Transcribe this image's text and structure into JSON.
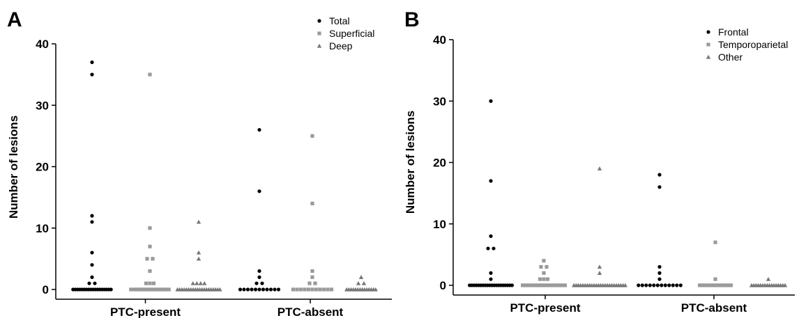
{
  "colors": {
    "total": "#000000",
    "superficial": "#9a9a9a",
    "deep": "#777777",
    "frontal": "#000000",
    "temporoparietal": "#9a9a9a",
    "other": "#777777"
  },
  "chart_data": [
    {
      "panel": "A",
      "type": "scatter",
      "ylabel": "Number of lesions",
      "ylim": [
        0,
        40
      ],
      "yticks": [
        "0",
        "10",
        "20",
        "30",
        "40"
      ],
      "categories": [
        "PTC-present",
        "PTC-absent"
      ],
      "legend_position": "top-right",
      "series": [
        {
          "name": "Total",
          "marker": "circle",
          "colorKey": "total",
          "groups": [
            [
              37,
              35,
              12,
              11,
              6,
              4,
              2,
              1,
              1,
              0,
              0,
              0,
              0,
              0,
              0,
              0,
              0,
              0,
              0,
              0,
              0,
              0,
              0,
              0,
              0,
              0,
              0
            ],
            [
              26,
              16,
              3,
              2,
              1,
              1,
              0,
              0,
              0,
              0,
              0,
              0,
              0,
              0,
              0,
              0,
              0
            ]
          ]
        },
        {
          "name": "Superficial",
          "marker": "square",
          "colorKey": "superficial",
          "groups": [
            [
              35,
              10,
              7,
              5,
              5,
              3,
              1,
              1,
              1,
              0,
              0,
              0,
              0,
              0,
              0,
              0,
              0,
              0,
              0,
              0,
              0,
              0,
              0,
              0,
              0,
              0,
              0
            ],
            [
              25,
              14,
              3,
              2,
              1,
              1,
              0,
              0,
              0,
              0,
              0,
              0,
              0,
              0,
              0,
              0,
              0
            ]
          ]
        },
        {
          "name": "Deep",
          "marker": "triangle",
          "colorKey": "deep",
          "groups": [
            [
              11,
              6,
              5,
              1,
              1,
              1,
              1,
              0,
              0,
              0,
              0,
              0,
              0,
              0,
              0,
              0,
              0,
              0,
              0,
              0,
              0,
              0,
              0,
              0,
              0,
              0,
              0
            ],
            [
              2,
              1,
              1,
              0,
              0,
              0,
              0,
              0,
              0,
              0,
              0,
              0,
              0,
              0,
              0,
              0,
              0
            ]
          ]
        }
      ]
    },
    {
      "panel": "B",
      "type": "scatter",
      "ylabel": "Number of lesions",
      "ylim": [
        0,
        40
      ],
      "yticks": [
        "0",
        "10",
        "20",
        "30",
        "40"
      ],
      "categories": [
        "PTC-present",
        "PTC-absent"
      ],
      "legend_position": "top-right",
      "series": [
        {
          "name": "Frontal",
          "marker": "circle",
          "colorKey": "frontal",
          "groups": [
            [
              30,
              17,
              8,
              6,
              6,
              2,
              1,
              0,
              0,
              0,
              0,
              0,
              0,
              0,
              0,
              0,
              0,
              0,
              0,
              0,
              0,
              0,
              0,
              0,
              0,
              0,
              0
            ],
            [
              18,
              16,
              3,
              2,
              1,
              0,
              0,
              0,
              0,
              0,
              0,
              0,
              0,
              0,
              0,
              0,
              0
            ]
          ]
        },
        {
          "name": "Temporoparietal",
          "marker": "square",
          "colorKey": "temporoparietal",
          "groups": [
            [
              4,
              3,
              3,
              2,
              1,
              1,
              1,
              0,
              0,
              0,
              0,
              0,
              0,
              0,
              0,
              0,
              0,
              0,
              0,
              0,
              0,
              0,
              0,
              0,
              0,
              0,
              0
            ],
            [
              7,
              1,
              0,
              0,
              0,
              0,
              0,
              0,
              0,
              0,
              0,
              0,
              0,
              0,
              0,
              0,
              0
            ]
          ]
        },
        {
          "name": "Other",
          "marker": "triangle",
          "colorKey": "other",
          "groups": [
            [
              19,
              3,
              2,
              0,
              0,
              0,
              0,
              0,
              0,
              0,
              0,
              0,
              0,
              0,
              0,
              0,
              0,
              0,
              0,
              0,
              0,
              0,
              0,
              0,
              0,
              0,
              0
            ],
            [
              1,
              0,
              0,
              0,
              0,
              0,
              0,
              0,
              0,
              0,
              0,
              0,
              0,
              0,
              0,
              0,
              0
            ]
          ]
        }
      ]
    }
  ]
}
